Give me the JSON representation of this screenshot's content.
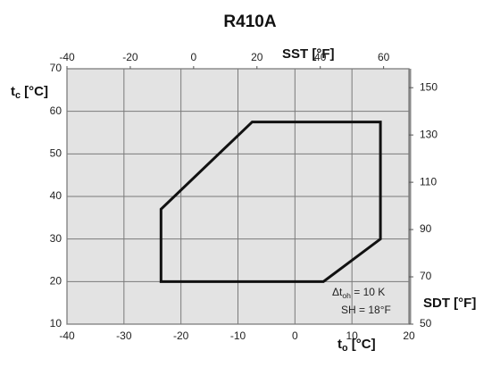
{
  "chart_data": {
    "type": "line",
    "title": "R410A",
    "y_label": {
      "main": "t",
      "sub": "c",
      "rest": " [°C]"
    },
    "x_label": {
      "main": "t",
      "sub": "o",
      "rest": " [°C]"
    },
    "x2_label": "SST [°F]",
    "y2_label": "SDT [°F]",
    "annotations": [
      {
        "main": "Δt",
        "sub": "oh",
        "rest": " = 10 K"
      },
      "SH = 18°F"
    ],
    "xlim": [
      -40,
      20
    ],
    "xticks": [
      -40,
      -30,
      -20,
      -10,
      0,
      10,
      20
    ],
    "ylim": [
      10,
      70
    ],
    "yticks": [
      10,
      20,
      30,
      40,
      50,
      60,
      70
    ],
    "x2lim": [
      -40,
      68
    ],
    "x2ticks": [
      -40,
      -20,
      0,
      20,
      40,
      60
    ],
    "y2lim": [
      50,
      158
    ],
    "y2ticks": [
      50,
      70,
      90,
      110,
      130,
      150
    ],
    "grid": true,
    "series": [
      {
        "color": "#111111",
        "x": [
          -23.5,
          -23.5,
          -7.5,
          15,
          15,
          5
        ],
        "values": [
          20,
          37,
          57.5,
          57.5,
          30,
          20
        ]
      }
    ]
  }
}
